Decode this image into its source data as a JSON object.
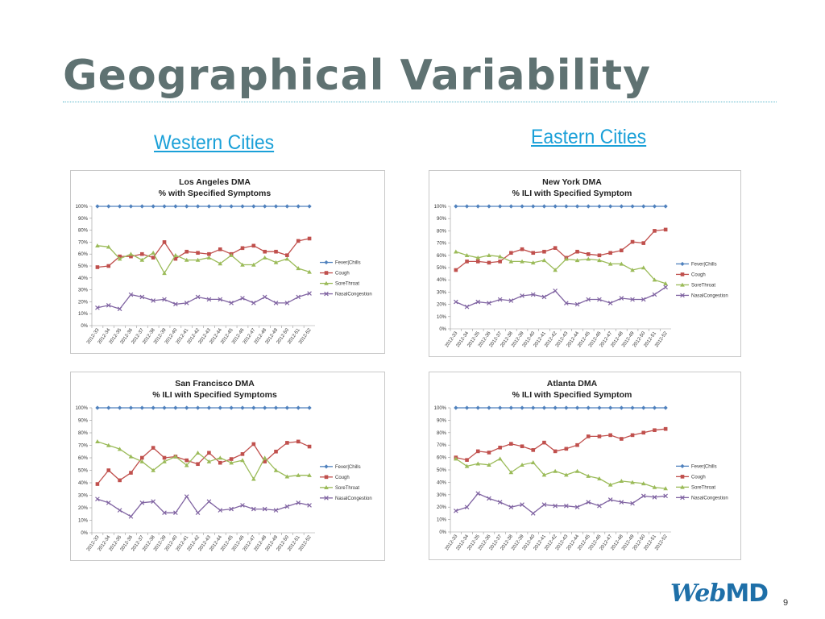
{
  "slide": {
    "title": "Geographical Variability",
    "western_heading": "Western Cities",
    "eastern_heading": "Eastern Cities",
    "page_number": "9",
    "logo_web": "Web",
    "logo_md": "MD"
  },
  "chart_data": [
    {
      "type": "line",
      "title_line1": "Los Angeles DMA",
      "title_line2": "% with Specified Symptoms",
      "x": [
        "2012-33",
        "2012-34",
        "2012-35",
        "2012-36",
        "2012-37",
        "2012-38",
        "2012-39",
        "2012-40",
        "2012-41",
        "2012-42",
        "2012-43",
        "2012-44",
        "2012-45",
        "2012-46",
        "2012-47",
        "2012-48",
        "2012-49",
        "2012-50",
        "2012-51",
        "2012-52"
      ],
      "ylim": [
        0,
        100
      ],
      "yticks": [
        "0%",
        "10%",
        "20%",
        "30%",
        "40%",
        "50%",
        "60%",
        "70%",
        "80%",
        "90%",
        "100%"
      ],
      "legend": "right",
      "series": [
        {
          "name": "Fever|Chills",
          "color": "#4f81bd",
          "marker": "diamond",
          "values": [
            100,
            100,
            100,
            100,
            100,
            100,
            100,
            100,
            100,
            100,
            100,
            100,
            100,
            100,
            100,
            100,
            100,
            100,
            100,
            100
          ]
        },
        {
          "name": "Cough",
          "color": "#c0504d",
          "marker": "square",
          "values": [
            49,
            50,
            58,
            58,
            60,
            57,
            70,
            56,
            62,
            61,
            60,
            64,
            60,
            65,
            67,
            62,
            62,
            59,
            71,
            73
          ]
        },
        {
          "name": "SoreThroat",
          "color": "#9bbb59",
          "marker": "triangle",
          "values": [
            67,
            66,
            56,
            60,
            55,
            61,
            44,
            59,
            55,
            55,
            57,
            52,
            59,
            51,
            51,
            57,
            53,
            56,
            48,
            45
          ]
        },
        {
          "name": "NasalCongestion",
          "color": "#8064a2",
          "marker": "x",
          "values": [
            15,
            17,
            14,
            26,
            24,
            21,
            22,
            18,
            19,
            24,
            22,
            22,
            19,
            23,
            19,
            24,
            19,
            19,
            24,
            27
          ]
        }
      ]
    },
    {
      "type": "line",
      "title_line1": "New York DMA",
      "title_line2": "% ILI with Specified Symptom",
      "x": [
        "2012-33",
        "2012-34",
        "2012-35",
        "2012-36",
        "2012-37",
        "2012-38",
        "2012-39",
        "2012-40",
        "2012-41",
        "2012-42",
        "2012-43",
        "2012-44",
        "2012-45",
        "2012-46",
        "2012-47",
        "2012-48",
        "2012-49",
        "2012-50",
        "2012-51",
        "2012-52"
      ],
      "ylim": [
        0,
        100
      ],
      "yticks": [
        "0%",
        "10%",
        "20%",
        "30%",
        "40%",
        "50%",
        "60%",
        "70%",
        "80%",
        "90%",
        "100%"
      ],
      "legend": "right",
      "series": [
        {
          "name": "Fever|Chills",
          "color": "#4f81bd",
          "marker": "diamond",
          "values": [
            100,
            100,
            100,
            100,
            100,
            100,
            100,
            100,
            100,
            100,
            100,
            100,
            100,
            100,
            100,
            100,
            100,
            100,
            100,
            100
          ]
        },
        {
          "name": "Cough",
          "color": "#c0504d",
          "marker": "square",
          "values": [
            48,
            55,
            55,
            54,
            55,
            62,
            65,
            62,
            63,
            66,
            58,
            63,
            61,
            60,
            62,
            64,
            71,
            70,
            80,
            81
          ]
        },
        {
          "name": "SoreThroat",
          "color": "#9bbb59",
          "marker": "triangle",
          "values": [
            63,
            60,
            58,
            60,
            59,
            55,
            55,
            54,
            56,
            48,
            57,
            56,
            57,
            56,
            53,
            53,
            48,
            50,
            40,
            37
          ]
        },
        {
          "name": "NasalCongestion",
          "color": "#8064a2",
          "marker": "x",
          "values": [
            22,
            18,
            22,
            21,
            24,
            23,
            27,
            28,
            26,
            31,
            21,
            20,
            24,
            24,
            21,
            25,
            24,
            24,
            28,
            34
          ]
        }
      ]
    },
    {
      "type": "line",
      "title_line1": "San Francisco DMA",
      "title_line2": "% ILI with Specified Symptoms",
      "x": [
        "2012-33",
        "2012-34",
        "2012-35",
        "2012-36",
        "2012-37",
        "2012-38",
        "2012-39",
        "2012-40",
        "2012-41",
        "2012-42",
        "2012-43",
        "2012-44",
        "2012-45",
        "2012-46",
        "2012-47",
        "2012-48",
        "2012-49",
        "2012-50",
        "2012-51",
        "2012-52"
      ],
      "ylim": [
        0,
        100
      ],
      "yticks": [
        "0%",
        "10%",
        "20%",
        "30%",
        "40%",
        "50%",
        "60%",
        "70%",
        "80%",
        "90%",
        "100%"
      ],
      "legend": "right",
      "series": [
        {
          "name": "Fever|Chills",
          "color": "#4f81bd",
          "marker": "diamond",
          "values": [
            100,
            100,
            100,
            100,
            100,
            100,
            100,
            100,
            100,
            100,
            100,
            100,
            100,
            100,
            100,
            100,
            100,
            100,
            100,
            100
          ]
        },
        {
          "name": "Cough",
          "color": "#c0504d",
          "marker": "square",
          "values": [
            39,
            50,
            42,
            48,
            60,
            68,
            60,
            61,
            58,
            55,
            64,
            56,
            59,
            63,
            71,
            57,
            65,
            72,
            73,
            69
          ]
        },
        {
          "name": "SoreThroat",
          "color": "#9bbb59",
          "marker": "triangle",
          "values": [
            73,
            70,
            67,
            61,
            57,
            50,
            57,
            61,
            54,
            64,
            57,
            60,
            56,
            58,
            43,
            60,
            50,
            45,
            46,
            46
          ]
        },
        {
          "name": "NasalCongestion",
          "color": "#8064a2",
          "marker": "x",
          "values": [
            27,
            24,
            18,
            13,
            24,
            25,
            16,
            16,
            29,
            16,
            25,
            18,
            19,
            22,
            19,
            19,
            18,
            21,
            24,
            22
          ]
        }
      ]
    },
    {
      "type": "line",
      "title_line1": "Atlanta DMA",
      "title_line2": "% ILI with Specified Symptom",
      "x": [
        "2012-33",
        "2012-34",
        "2012-35",
        "2012-36",
        "2012-37",
        "2012-38",
        "2012-39",
        "2012-40",
        "2012-41",
        "2012-42",
        "2012-43",
        "2012-44",
        "2012-45",
        "2012-46",
        "2012-47",
        "2012-48",
        "2012-49",
        "2012-50",
        "2012-51",
        "2012-52"
      ],
      "ylim": [
        0,
        100
      ],
      "yticks": [
        "0%",
        "10%",
        "20%",
        "30%",
        "40%",
        "50%",
        "60%",
        "70%",
        "80%",
        "90%",
        "100%"
      ],
      "legend": "right",
      "series": [
        {
          "name": "Fever|Chills",
          "color": "#4f81bd",
          "marker": "diamond",
          "values": [
            100,
            100,
            100,
            100,
            100,
            100,
            100,
            100,
            100,
            100,
            100,
            100,
            100,
            100,
            100,
            100,
            100,
            100,
            100,
            100
          ]
        },
        {
          "name": "Cough",
          "color": "#c0504d",
          "marker": "square",
          "values": [
            60,
            58,
            65,
            64,
            68,
            71,
            69,
            66,
            72,
            65,
            67,
            70,
            77,
            77,
            78,
            75,
            78,
            80,
            82,
            83
          ]
        },
        {
          "name": "SoreThroat",
          "color": "#9bbb59",
          "marker": "triangle",
          "values": [
            59,
            53,
            55,
            54,
            59,
            48,
            54,
            56,
            46,
            49,
            46,
            49,
            45,
            43,
            38,
            41,
            40,
            39,
            36,
            35
          ]
        },
        {
          "name": "NasalCongestion",
          "color": "#8064a2",
          "marker": "x",
          "values": [
            17,
            20,
            31,
            27,
            24,
            20,
            22,
            15,
            22,
            21,
            21,
            20,
            24,
            21,
            26,
            24,
            23,
            29,
            28,
            29
          ]
        }
      ]
    }
  ]
}
